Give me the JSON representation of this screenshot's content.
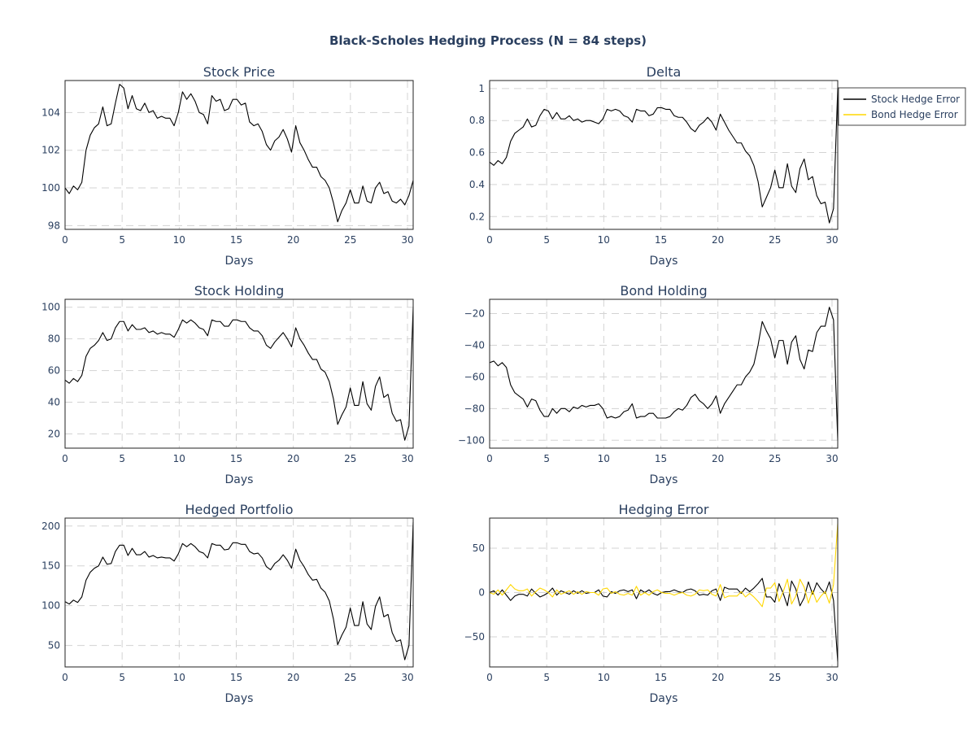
{
  "title": "Black-Scholes Hedging Process (N = 84 steps)",
  "colors": {
    "stock": "#000000",
    "bond": "#FFD700",
    "text": "#2a3f5f",
    "grid": "#d3d3d3"
  },
  "legend": {
    "placement": "top-right",
    "items": [
      "Stock Hedge Error",
      "Bond Hedge Error"
    ]
  },
  "chart_data": [
    {
      "type": "line",
      "title": "Stock Price",
      "xlabel": "Days",
      "ylabel": "",
      "grid": true,
      "xlim": [
        0,
        30.5
      ],
      "ylim": [
        97.8,
        105.7
      ],
      "xticks": [
        0,
        5,
        10,
        15,
        20,
        25,
        30
      ],
      "yticks": [
        98,
        100,
        102,
        104
      ],
      "series": [
        {
          "color_key": "stock",
          "values": [
            100.0,
            99.7,
            100.1,
            99.9,
            100.3,
            102.0,
            102.8,
            103.2,
            103.4,
            104.3,
            103.3,
            103.4,
            104.5,
            105.5,
            105.3,
            104.2,
            104.9,
            104.2,
            104.1,
            104.5,
            104.0,
            104.1,
            103.7,
            103.8,
            103.7,
            103.7,
            103.3,
            104.0,
            105.1,
            104.7,
            105.0,
            104.6,
            104.0,
            103.9,
            103.4,
            104.9,
            104.6,
            104.7,
            104.1,
            104.2,
            104.7,
            104.7,
            104.4,
            104.5,
            103.5,
            103.3,
            103.4,
            103.0,
            102.3,
            102.0,
            102.5,
            102.7,
            103.1,
            102.6,
            101.9,
            103.3,
            102.4,
            102.0,
            101.5,
            101.1,
            101.1,
            100.6,
            100.4,
            100.0,
            99.2,
            98.2,
            98.8,
            99.2,
            99.9,
            99.2,
            99.2,
            100.1,
            99.3,
            99.2,
            100.0,
            100.3,
            99.7,
            99.8,
            99.3,
            99.2,
            99.4,
            99.1,
            99.6,
            100.4
          ]
        }
      ]
    },
    {
      "type": "line",
      "title": "Delta",
      "xlabel": "Days",
      "ylabel": "",
      "grid": true,
      "xlim": [
        0,
        30.5
      ],
      "ylim": [
        0.12,
        1.05
      ],
      "xticks": [
        0,
        5,
        10,
        15,
        20,
        25,
        30
      ],
      "yticks": [
        0.2,
        0.4,
        0.6,
        0.8,
        1
      ],
      "series": [
        {
          "color_key": "stock",
          "values": [
            0.54,
            0.52,
            0.55,
            0.53,
            0.57,
            0.67,
            0.72,
            0.74,
            0.76,
            0.81,
            0.76,
            0.77,
            0.83,
            0.87,
            0.86,
            0.81,
            0.85,
            0.81,
            0.81,
            0.83,
            0.8,
            0.81,
            0.79,
            0.8,
            0.8,
            0.79,
            0.78,
            0.81,
            0.87,
            0.86,
            0.87,
            0.86,
            0.83,
            0.82,
            0.79,
            0.87,
            0.86,
            0.86,
            0.83,
            0.84,
            0.88,
            0.88,
            0.87,
            0.87,
            0.83,
            0.82,
            0.82,
            0.79,
            0.75,
            0.73,
            0.77,
            0.79,
            0.82,
            0.79,
            0.74,
            0.84,
            0.79,
            0.74,
            0.7,
            0.66,
            0.66,
            0.61,
            0.58,
            0.52,
            0.42,
            0.26,
            0.32,
            0.38,
            0.49,
            0.38,
            0.38,
            0.53,
            0.39,
            0.35,
            0.5,
            0.56,
            0.43,
            0.45,
            0.33,
            0.28,
            0.29,
            0.16,
            0.25,
            1.0
          ]
        }
      ]
    },
    {
      "type": "line",
      "title": "Stock Holding",
      "xlabel": "Days",
      "ylabel": "",
      "grid": true,
      "xlim": [
        0,
        30.5
      ],
      "ylim": [
        11,
        105
      ],
      "xticks": [
        0,
        5,
        10,
        15,
        20,
        25,
        30
      ],
      "yticks": [
        20,
        40,
        60,
        80,
        100
      ],
      "series": [
        {
          "color_key": "stock",
          "values": [
            54,
            52,
            55,
            53,
            57,
            69,
            74,
            76,
            79,
            84,
            79,
            80,
            87,
            91,
            91,
            85,
            89,
            86,
            86,
            87,
            84,
            85,
            83,
            84,
            83,
            83,
            81,
            86,
            92,
            90,
            92,
            90,
            87,
            86,
            82,
            92,
            91,
            91,
            88,
            88,
            92,
            92,
            91,
            91,
            87,
            85,
            85,
            82,
            76,
            74,
            78,
            81,
            84,
            80,
            75,
            87,
            80,
            76,
            71,
            67,
            67,
            61,
            59,
            53,
            42,
            26,
            32,
            37,
            49,
            38,
            38,
            53,
            39,
            35,
            50,
            56,
            43,
            45,
            33,
            28,
            29,
            16,
            25,
            100
          ]
        }
      ]
    },
    {
      "type": "line",
      "title": "Bond Holding",
      "xlabel": "Days",
      "ylabel": "",
      "grid": true,
      "xlim": [
        0,
        30.5
      ],
      "ylim": [
        -105,
        -11
      ],
      "xticks": [
        0,
        5,
        10,
        15,
        20,
        25,
        30
      ],
      "yticks": [
        -100,
        -80,
        -60,
        -40,
        -20
      ],
      "series": [
        {
          "color_key": "stock",
          "values": [
            -51,
            -50,
            -53,
            -51,
            -54,
            -65,
            -70,
            -72,
            -74,
            -79,
            -74,
            -75,
            -81,
            -85,
            -85,
            -80,
            -83,
            -80,
            -80,
            -82,
            -79,
            -80,
            -78,
            -79,
            -78,
            -78,
            -77,
            -80,
            -86,
            -85,
            -86,
            -85,
            -82,
            -81,
            -77,
            -86,
            -85,
            -85,
            -83,
            -83,
            -86,
            -86,
            -86,
            -85,
            -82,
            -80,
            -81,
            -78,
            -73,
            -71,
            -75,
            -77,
            -80,
            -77,
            -72,
            -83,
            -77,
            -73,
            -69,
            -65,
            -65,
            -60,
            -57,
            -52,
            -40,
            -25,
            -31,
            -36,
            -48,
            -37,
            -37,
            -52,
            -38,
            -34,
            -49,
            -55,
            -43,
            -44,
            -32,
            -28,
            -28,
            -16,
            -24,
            -100
          ]
        }
      ]
    },
    {
      "type": "line",
      "title": "Hedged Portfolio",
      "xlabel": "Days",
      "ylabel": "",
      "grid": true,
      "xlim": [
        0,
        30.5
      ],
      "ylim": [
        23,
        210
      ],
      "xticks": [
        0,
        5,
        10,
        15,
        20,
        25,
        30
      ],
      "yticks": [
        50,
        100,
        150,
        200
      ],
      "series": [
        {
          "color_key": "stock",
          "values": [
            105,
            102,
            107,
            104,
            111,
            132,
            142,
            147,
            150,
            161,
            152,
            153,
            168,
            176,
            176,
            163,
            172,
            164,
            164,
            168,
            161,
            163,
            160,
            161,
            160,
            160,
            156,
            165,
            178,
            174,
            178,
            174,
            168,
            166,
            160,
            178,
            176,
            176,
            170,
            171,
            179,
            179,
            177,
            177,
            168,
            165,
            166,
            160,
            149,
            145,
            153,
            157,
            164,
            157,
            147,
            171,
            157,
            149,
            139,
            132,
            133,
            122,
            117,
            106,
            83,
            51,
            63,
            73,
            97,
            75,
            75,
            105,
            77,
            70,
            99,
            111,
            86,
            89,
            66,
            55,
            57,
            32,
            50,
            205
          ]
        }
      ]
    },
    {
      "type": "line",
      "title": "Hedging Error",
      "xlabel": "Days",
      "ylabel": "",
      "grid": true,
      "xlim": [
        0,
        30.5
      ],
      "ylim": [
        -84,
        84
      ],
      "xticks": [
        0,
        5,
        10,
        15,
        20,
        25,
        30
      ],
      "yticks": [
        -50,
        0,
        50
      ],
      "legend": [
        "Stock Hedge Error",
        "Bond Hedge Error"
      ],
      "series": [
        {
          "name": "Stock Hedge Error",
          "color_key": "stock",
          "values": [
            0,
            2,
            -3,
            3,
            -3,
            -9,
            -4,
            -2,
            -2,
            -4,
            4,
            -1,
            -5,
            -3,
            0,
            5,
            -3,
            2,
            0,
            -2,
            2,
            -1,
            2,
            -1,
            0,
            0,
            3,
            -4,
            -5,
            1,
            -1,
            2,
            3,
            1,
            3,
            -7,
            3,
            0,
            3,
            -1,
            -3,
            0,
            1,
            1,
            3,
            1,
            0,
            3,
            4,
            2,
            -3,
            -2,
            -3,
            2,
            4,
            -9,
            6,
            4,
            4,
            4,
            -1,
            5,
            1,
            5,
            10,
            16,
            -5,
            -5,
            -11,
            10,
            -1,
            -15,
            13,
            4,
            -15,
            -6,
            12,
            -2,
            11,
            4,
            -1,
            12,
            -9,
            -78
          ]
        },
        {
          "name": "Bond Hedge Error",
          "color_key": "bond",
          "values": [
            0,
            -2,
            3,
            -3,
            3,
            9,
            4,
            2,
            2,
            4,
            -4,
            1,
            5,
            3,
            0,
            -5,
            3,
            -2,
            0,
            2,
            -2,
            1,
            -2,
            1,
            0,
            0,
            -3,
            4,
            5,
            -1,
            1,
            -2,
            -3,
            -1,
            -3,
            7,
            -3,
            0,
            -3,
            1,
            3,
            0,
            -1,
            -1,
            -3,
            -1,
            0,
            -3,
            -4,
            -2,
            3,
            2,
            3,
            -2,
            -4,
            9,
            -6,
            -4,
            -4,
            -4,
            1,
            -5,
            -1,
            -5,
            -10,
            -16,
            5,
            5,
            11,
            -10,
            1,
            15,
            -13,
            -4,
            15,
            6,
            -12,
            2,
            -11,
            -4,
            1,
            -12,
            9,
            78
          ]
        }
      ]
    }
  ]
}
